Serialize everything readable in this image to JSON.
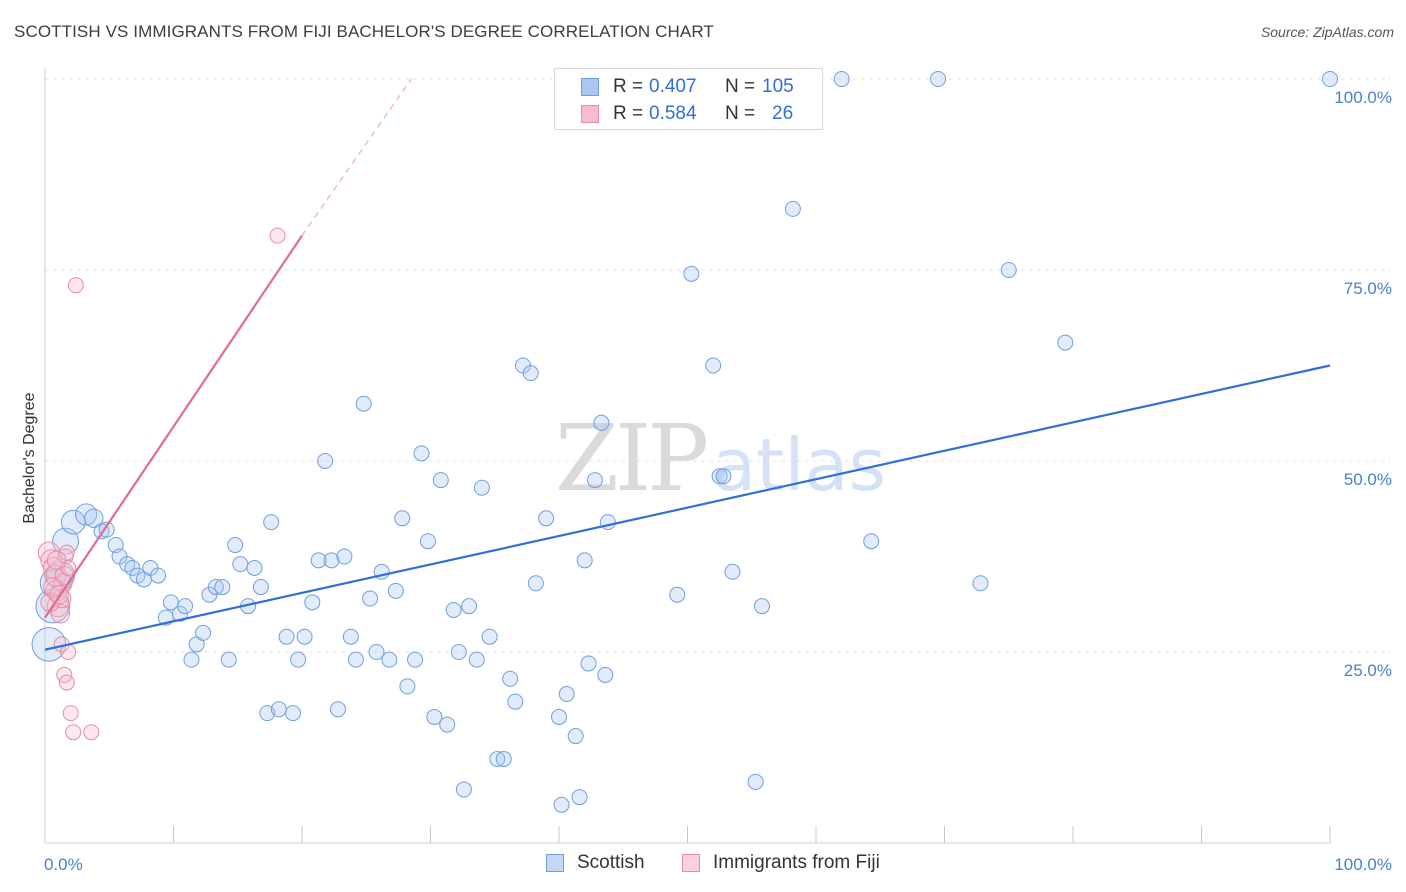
{
  "header": {
    "title": "SCOTTISH VS IMMIGRANTS FROM FIJI BACHELOR'S DEGREE CORRELATION CHART",
    "source": "Source: ZipAtlas.com"
  },
  "watermark": {
    "zip": "ZIP",
    "atlas": "atlas"
  },
  "legend": {
    "rows": [
      {
        "r_label": "R =",
        "r_value": "0.407",
        "n_label": "N =",
        "n_value": "105",
        "color": "#a9c7f0",
        "border": "#6f9fde"
      },
      {
        "r_label": "R =",
        "r_value": "0.584",
        "n_label": "N =",
        "n_value": "26",
        "color": "#f7bccd",
        "border": "#e98aa6"
      }
    ]
  },
  "bottom_legend": [
    {
      "label": "Scottish",
      "color": "#c3d8f5",
      "border": "#6f9fde"
    },
    {
      "label": "Immigrants from Fiji",
      "color": "#f9d0dc",
      "border": "#e98aa6"
    }
  ],
  "chart_data": {
    "type": "scatter",
    "title": "SCOTTISH VS IMMIGRANTS FROM FIJI BACHELOR'S DEGREE CORRELATION CHART",
    "xlabel": "",
    "ylabel": "Bachelor's Degree",
    "xlim": [
      0,
      100
    ],
    "ylim": [
      0,
      100
    ],
    "x_tick_labels": [
      "0.0%",
      "100.0%"
    ],
    "y_tick_labels": [
      "25.0%",
      "50.0%",
      "75.0%",
      "100.0%"
    ],
    "y_ticks": [
      25,
      50,
      75,
      100
    ],
    "grid": true,
    "legend_position": "top-center",
    "series": [
      {
        "name": "Scottish",
        "color": "#7aa7e6",
        "trend": {
          "x0": 0,
          "y0": 25.3,
          "x1": 100,
          "y1": 62.5,
          "color": "#2f6fd6"
        },
        "points": [
          [
            0.3,
            26,
            5
          ],
          [
            0.6,
            31,
            5
          ],
          [
            0.8,
            34,
            4
          ],
          [
            1.2,
            35,
            3.5
          ],
          [
            1.6,
            39.5,
            3
          ],
          [
            2.2,
            42,
            2.5
          ],
          [
            3.2,
            43,
            2
          ],
          [
            3.8,
            42.5,
            1.5
          ],
          [
            4.4,
            40.8,
            1
          ],
          [
            4.8,
            41,
            1
          ],
          [
            5.5,
            39,
            1
          ],
          [
            5.8,
            37.5,
            1
          ],
          [
            6.4,
            36.5,
            1
          ],
          [
            6.8,
            36,
            1
          ],
          [
            7.2,
            35,
            1
          ],
          [
            7.7,
            34.5,
            1
          ],
          [
            8.2,
            36,
            1
          ],
          [
            8.8,
            35,
            1
          ],
          [
            9.4,
            29.5,
            1
          ],
          [
            9.8,
            31.5,
            1
          ],
          [
            10.5,
            30,
            1
          ],
          [
            10.9,
            31,
            1
          ],
          [
            11.4,
            24,
            1
          ],
          [
            11.8,
            26,
            1
          ],
          [
            12.3,
            27.5,
            1
          ],
          [
            12.8,
            32.5,
            1
          ],
          [
            13.3,
            33.5,
            1
          ],
          [
            13.8,
            33.5,
            1
          ],
          [
            14.3,
            24,
            1
          ],
          [
            14.8,
            39,
            1
          ],
          [
            15.2,
            36.5,
            1
          ],
          [
            15.8,
            31,
            1
          ],
          [
            16.3,
            36,
            1
          ],
          [
            16.8,
            33.5,
            1
          ],
          [
            17.3,
            17,
            1
          ],
          [
            17.6,
            42,
            1
          ],
          [
            18.2,
            17.5,
            1
          ],
          [
            18.8,
            27,
            1
          ],
          [
            19.3,
            17,
            1
          ],
          [
            19.7,
            24,
            1
          ],
          [
            20.2,
            27,
            1
          ],
          [
            20.8,
            31.5,
            1
          ],
          [
            21.3,
            37,
            1
          ],
          [
            21.8,
            50,
            1
          ],
          [
            22.3,
            37,
            1
          ],
          [
            22.8,
            17.5,
            1
          ],
          [
            23.3,
            37.5,
            1
          ],
          [
            23.8,
            27,
            1
          ],
          [
            24.2,
            24,
            1
          ],
          [
            24.8,
            57.5,
            1
          ],
          [
            25.3,
            32,
            1
          ],
          [
            25.8,
            25,
            1
          ],
          [
            26.2,
            35.5,
            1
          ],
          [
            26.8,
            24,
            1
          ],
          [
            27.3,
            33,
            1
          ],
          [
            27.8,
            42.5,
            1
          ],
          [
            28.2,
            20.5,
            1
          ],
          [
            28.8,
            24,
            1
          ],
          [
            29.3,
            51,
            1
          ],
          [
            29.8,
            39.5,
            1
          ],
          [
            30.3,
            16.5,
            1
          ],
          [
            30.8,
            47.5,
            1
          ],
          [
            31.3,
            15.5,
            1
          ],
          [
            31.8,
            30.5,
            1
          ],
          [
            32.2,
            25,
            1
          ],
          [
            32.6,
            7,
            1
          ],
          [
            33.0,
            31,
            1
          ],
          [
            33.6,
            24,
            1
          ],
          [
            34.0,
            46.5,
            1
          ],
          [
            34.6,
            27,
            1
          ],
          [
            35.2,
            11,
            1
          ],
          [
            35.7,
            11,
            1
          ],
          [
            36.2,
            21.5,
            1
          ],
          [
            36.6,
            18.5,
            1
          ],
          [
            37.2,
            62.5,
            1
          ],
          [
            37.8,
            61.5,
            1
          ],
          [
            38.2,
            34,
            1
          ],
          [
            39.0,
            42.5,
            1
          ],
          [
            40.0,
            16.5,
            1
          ],
          [
            40.2,
            5,
            1
          ],
          [
            40.6,
            19.5,
            1
          ],
          [
            41.3,
            14,
            1
          ],
          [
            41.6,
            6,
            1
          ],
          [
            42.0,
            37,
            1
          ],
          [
            42.3,
            23.5,
            1
          ],
          [
            42.8,
            47.5,
            1
          ],
          [
            43.3,
            55,
            1
          ],
          [
            43.6,
            22,
            1
          ],
          [
            43.8,
            42,
            1
          ],
          [
            49.2,
            32.5,
            1
          ],
          [
            50.3,
            74.5,
            1
          ],
          [
            52.0,
            62.5,
            1
          ],
          [
            52.5,
            48,
            1
          ],
          [
            52.8,
            48,
            1
          ],
          [
            53.5,
            35.5,
            1
          ],
          [
            55.3,
            8,
            1
          ],
          [
            55.8,
            31,
            1
          ],
          [
            58.2,
            83,
            1
          ],
          [
            62.0,
            100,
            1
          ],
          [
            64.3,
            39.5,
            1
          ],
          [
            69.5,
            100,
            1
          ],
          [
            72.8,
            34,
            1
          ],
          [
            75.0,
            75,
            1
          ],
          [
            79.4,
            65.5,
            1
          ],
          [
            100,
            100,
            1
          ]
        ]
      },
      {
        "name": "Immigrants from Fiji",
        "color": "#ee9ab3",
        "trend": {
          "x0": 0,
          "y0": 29.5,
          "x1": 20,
          "y1": 79.5,
          "dash_to_x": 28.5,
          "dash_to_y": 100,
          "color": "#e06b93"
        },
        "points": [
          [
            0.3,
            38,
            2
          ],
          [
            0.5,
            37,
            2
          ],
          [
            0.7,
            36,
            2
          ],
          [
            0.8,
            35,
            2
          ],
          [
            0.9,
            33,
            2
          ],
          [
            1.0,
            31,
            2
          ],
          [
            1.2,
            30,
            1.5
          ],
          [
            1.3,
            32,
            1.5
          ],
          [
            1.4,
            34,
            1.5
          ],
          [
            1.5,
            35,
            1.5
          ],
          [
            1.6,
            37.5,
            1
          ],
          [
            1.7,
            38,
            1
          ],
          [
            1.8,
            36,
            1
          ],
          [
            1.3,
            26,
            1
          ],
          [
            1.5,
            22,
            1
          ],
          [
            1.7,
            21,
            1
          ],
          [
            1.8,
            25,
            1
          ],
          [
            2.0,
            17,
            1
          ],
          [
            2.2,
            14.5,
            1
          ],
          [
            3.6,
            14.5,
            1
          ],
          [
            2.4,
            73,
            1
          ],
          [
            18.1,
            79.5,
            1
          ],
          [
            0.4,
            31.5,
            1.5
          ],
          [
            0.6,
            33.5,
            1.5
          ],
          [
            1.1,
            32.5,
            1.5
          ],
          [
            0.9,
            37,
            1.5
          ]
        ]
      }
    ]
  }
}
